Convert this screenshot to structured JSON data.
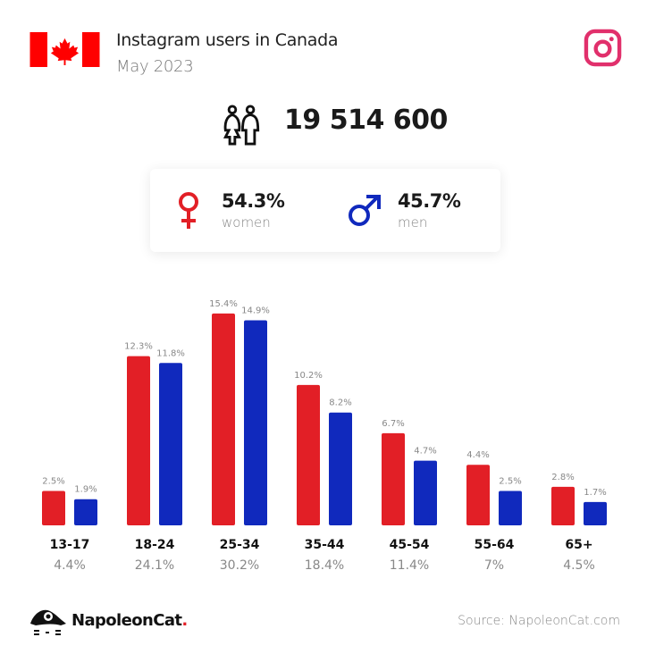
{
  "header": {
    "title": "Instagram users in Canada",
    "subtitle": "May 2023",
    "flag_icon": "canada-flag-icon",
    "platform_icon": "instagram-icon"
  },
  "total": {
    "value": "19 514 600",
    "icon": "people-icon"
  },
  "gender": {
    "women": {
      "pct": "54.3%",
      "label": "women",
      "color": "#e21f26"
    },
    "men": {
      "pct": "45.7%",
      "label": "men",
      "color": "#1029bd"
    }
  },
  "chart_data": {
    "type": "bar",
    "categories": [
      "13-17",
      "18-24",
      "25-34",
      "35-44",
      "45-54",
      "55-64",
      "65+"
    ],
    "category_shares": [
      "4.4%",
      "24.1%",
      "30.2%",
      "18.4%",
      "11.4%",
      "7%",
      "4.5%"
    ],
    "series": [
      {
        "key": "women",
        "color": "#e21f26",
        "values": [
          2.5,
          12.3,
          15.4,
          10.2,
          6.7,
          4.4,
          2.8
        ],
        "labels": [
          "2.5%",
          "12.3%",
          "15.4%",
          "10.2%",
          "6.7%",
          "4.4%",
          "2.8%"
        ]
      },
      {
        "key": "men",
        "color": "#1029bd",
        "values": [
          1.9,
          11.8,
          14.9,
          8.2,
          4.7,
          2.5,
          1.7
        ],
        "labels": [
          "1.9%",
          "11.8%",
          "14.9%",
          "8.2%",
          "4.7%",
          "2.5%",
          "1.7%"
        ]
      }
    ],
    "ylim": [
      0,
      16
    ],
    "grid": false,
    "legend": "none"
  },
  "footer": {
    "brand": "NapoleonCat",
    "brand_dot": ".",
    "source": "Source: NapoleonCat.com"
  }
}
